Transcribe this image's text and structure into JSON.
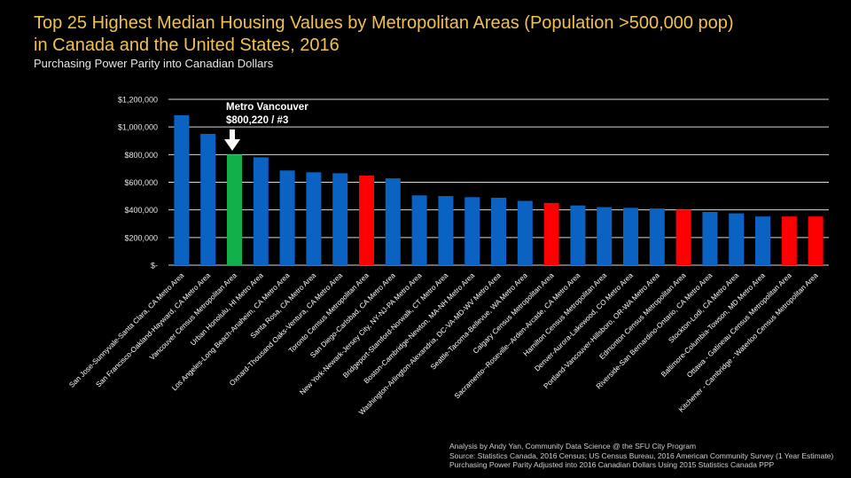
{
  "header": {
    "title_line1": "Top 25 Highest Median Housing Values by Metropolitan Areas (Population >500,000 pop)",
    "title_line2": "in Canada and the United States, 2016",
    "subtitle": "Purchasing Power Parity into Canadian Dollars"
  },
  "annotation": {
    "line1": "Metro Vancouver",
    "line2": "$800,220 / #3"
  },
  "footer": {
    "line1": "Analysis by Andy Yan, Community Data Science @ the SFU City Program",
    "line2": "Source: Statistics Canada, 2016 Census; US Census Bureau, 2016 American Community Survey (1 Year Estimate)",
    "line3": "Purchasing Power Parity Adjusted into 2016 Canadian Dollars Using 2015 Statistics Canada PPP"
  },
  "colors": {
    "background": "#000000",
    "title": "#f2c14e",
    "us_metro": "#0a62c2",
    "canada_census": "#ff0000",
    "vancouver": "#12b04a",
    "gridline": "#d9d9d9"
  },
  "chart_data": {
    "type": "bar",
    "ylim": [
      0,
      1200000
    ],
    "y_ticks": [
      0,
      200000,
      400000,
      600000,
      800000,
      1000000,
      1200000
    ],
    "y_tick_labels": [
      "$-",
      "$200,000",
      "$400,000",
      "$600,000",
      "$800,000",
      "$1,000,000",
      "$1,200,000"
    ],
    "grid": true,
    "categories": [
      "San Jose-Sunnyvale-Santa Clara, CA Metro Area",
      "San Francisco-Oakland-Hayward, CA Metro Area",
      "Vancouver Census Metropolitan Area",
      "Urban Honolulu, HI Metro Area",
      "Los Angeles-Long Beach-Anaheim, CA Metro Area",
      "Santa Rosa, CA Metro Area",
      "Oxnard-Thousand Oaks-Ventura, CA Metro Area",
      "Toronto Census Metropolitan Area",
      "San Diego-Carlsbad, CA Metro Area",
      "New York-Newark-Jersey City, NY-NJ-PA Metro Area",
      "Bridgeport-Stamford-Norwalk, CT Metro Area",
      "Boston-Cambridge-Newton, MA-NH Metro Area",
      "Washington-Arlington-Alexandria, DC-VA-MD-WV Metro Area",
      "Seattle-Tacoma-Bellevue, WA Metro Area",
      "Calgary Census Metropolitan Area",
      "Sacramento--Roseville--Arden-Arcade, CA Metro Area",
      "Hamilton Census Metropolitan Area",
      "Denver-Aurora-Lakewood, CO Metro Area",
      "Portland-Vancouver-Hillsboro, OR-WA Metro Area",
      "Edmonton Census Metropolitan Area",
      "Riverside-San Bernardino-Ontario, CA Metro Area",
      "Stockton-Lodi, CA Metro Area",
      "Baltimore-Columbia-Towson, MD Metro Area",
      "Ottawa - Gatineau Census Metropolitan Area",
      "Kitchener - Cambridge - Waterloo Census Metropolitan Area"
    ],
    "values": [
      1085000,
      950000,
      800220,
      780000,
      685000,
      672000,
      665000,
      648000,
      628000,
      505000,
      500000,
      492000,
      488000,
      465000,
      450000,
      432000,
      420000,
      415000,
      410000,
      402000,
      385000,
      375000,
      352000,
      352000,
      352000
    ],
    "bar_colors": [
      "#0a62c2",
      "#0a62c2",
      "#12b04a",
      "#0a62c2",
      "#0a62c2",
      "#0a62c2",
      "#0a62c2",
      "#ff0000",
      "#0a62c2",
      "#0a62c2",
      "#0a62c2",
      "#0a62c2",
      "#0a62c2",
      "#0a62c2",
      "#ff0000",
      "#0a62c2",
      "#0a62c2",
      "#0a62c2",
      "#0a62c2",
      "#ff0000",
      "#0a62c2",
      "#0a62c2",
      "#0a62c2",
      "#ff0000",
      "#ff0000"
    ]
  }
}
